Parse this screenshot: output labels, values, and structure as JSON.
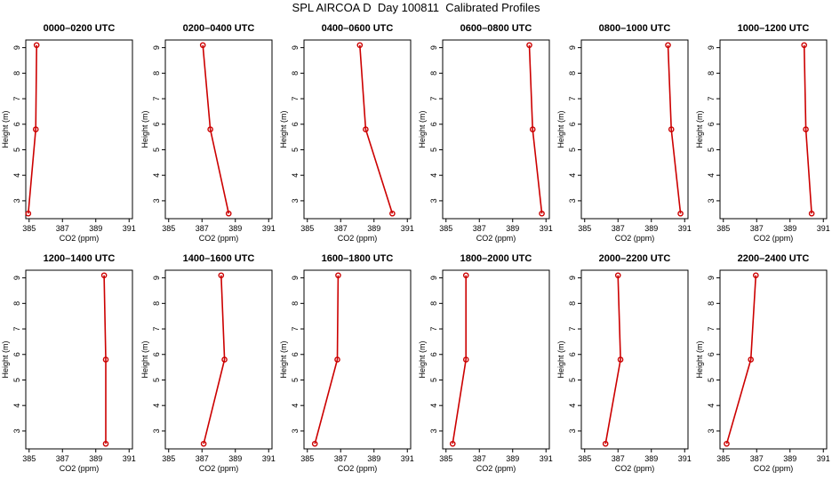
{
  "chart_data": {
    "type": "line",
    "title": "SPL AIRCOA D  Day 100811  Calibrated Profiles",
    "xlabel": "CO2 (ppm)",
    "ylabel": "Height (m)",
    "xlim": [
      384.8,
      391.2
    ],
    "ylim": [
      2.3,
      9.3
    ],
    "x_ticks": [
      385,
      387,
      389,
      391
    ],
    "y_ticks": [
      3,
      4,
      5,
      6,
      7,
      8,
      9
    ],
    "heights": [
      2.5,
      5.8,
      9.1
    ],
    "colors": {
      "line": "#cc0000",
      "axis": "#000000"
    },
    "panels": [
      {
        "title": "0000–0200 UTC",
        "co2": [
          384.95,
          385.4,
          385.45
        ]
      },
      {
        "title": "0200–0400 UTC",
        "co2": [
          388.6,
          387.5,
          387.05
        ]
      },
      {
        "title": "0400–0600 UTC",
        "co2": [
          390.1,
          388.5,
          388.15
        ]
      },
      {
        "title": "0600–0800 UTC",
        "co2": [
          390.75,
          390.2,
          390.0
        ]
      },
      {
        "title": "0800–1000 UTC",
        "co2": [
          390.75,
          390.2,
          390.0
        ]
      },
      {
        "title": "1000–1200 UTC",
        "co2": [
          390.3,
          389.95,
          389.85
        ]
      },
      {
        "title": "1200–1400 UTC",
        "co2": [
          389.6,
          389.6,
          389.5
        ]
      },
      {
        "title": "1400–1600 UTC",
        "co2": [
          387.1,
          388.35,
          388.15
        ]
      },
      {
        "title": "1600–1800 UTC",
        "co2": [
          385.45,
          386.8,
          386.85
        ]
      },
      {
        "title": "1800–2000 UTC",
        "co2": [
          385.4,
          386.2,
          386.2
        ]
      },
      {
        "title": "2000–2200 UTC",
        "co2": [
          386.25,
          387.15,
          387.0
        ]
      },
      {
        "title": "2200–2400 UTC",
        "co2": [
          385.2,
          386.65,
          386.95
        ]
      }
    ]
  }
}
